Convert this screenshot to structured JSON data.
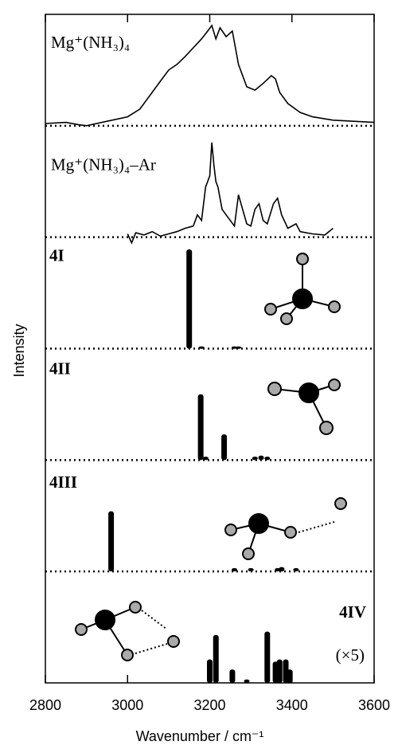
{
  "chart_data": {
    "type": "stacked",
    "xlabel": "Wavenumber / cm⁻¹",
    "ylabel": "Intensity",
    "xlim": [
      2800,
      3600
    ],
    "xticks": [
      2800,
      3000,
      3200,
      3400,
      3600
    ],
    "ylim": [
      0,
      100
    ],
    "panels": [
      {
        "type": "line",
        "label": "Mg⁺(NH₃)₄",
        "x": [
          2800,
          2850,
          2880,
          2900,
          2950,
          3000,
          3030,
          3060,
          3080,
          3100,
          3120,
          3140,
          3160,
          3180,
          3195,
          3205,
          3215,
          3225,
          3240,
          3255,
          3270,
          3290,
          3310,
          3330,
          3350,
          3360,
          3370,
          3390,
          3420,
          3450,
          3500,
          3550,
          3600
        ],
        "values": [
          2,
          3,
          1,
          0,
          4,
          8,
          15,
          30,
          40,
          50,
          55,
          62,
          70,
          78,
          85,
          90,
          78,
          88,
          80,
          85,
          55,
          35,
          32,
          38,
          45,
          42,
          30,
          20,
          12,
          8,
          5,
          4,
          3
        ]
      },
      {
        "type": "line",
        "label": "Mg⁺(NH₃)₄–Ar",
        "x": [
          3000,
          3010,
          3020,
          3040,
          3060,
          3080,
          3100,
          3120,
          3140,
          3160,
          3170,
          3180,
          3190,
          3200,
          3205,
          3210,
          3215,
          3220,
          3230,
          3240,
          3250,
          3260,
          3270,
          3280,
          3290,
          3300,
          3310,
          3320,
          3330,
          3340,
          3355,
          3365,
          3375,
          3390,
          3410,
          3420,
          3450,
          3480,
          3500
        ],
        "values": [
          3,
          -5,
          4,
          2,
          5,
          1,
          3,
          5,
          8,
          10,
          20,
          15,
          45,
          55,
          85,
          65,
          50,
          45,
          25,
          20,
          15,
          10,
          38,
          25,
          12,
          10,
          25,
          30,
          15,
          12,
          30,
          35,
          20,
          8,
          12,
          5,
          3,
          2,
          8
        ]
      },
      {
        "type": "stick",
        "label": "4I",
        "x": [
          3150,
          3180,
          3260,
          3270
        ],
        "values": [
          89,
          2,
          2,
          2
        ]
      },
      {
        "type": "stick",
        "label": "4II",
        "x": [
          3178,
          3190,
          3235,
          3310,
          3325,
          3340
        ],
        "values": [
          59,
          3,
          23,
          3,
          4,
          3
        ]
      },
      {
        "type": "stick",
        "label": "4III",
        "x": [
          2960,
          3260,
          3300,
          3365,
          3375,
          3410
        ],
        "values": [
          54,
          3,
          3,
          3,
          4,
          3
        ]
      },
      {
        "type": "stick",
        "label": "4IV",
        "annotation": "(×5)",
        "x": [
          3200,
          3215,
          3255,
          3290,
          3340,
          3360,
          3370,
          3385,
          3395
        ],
        "values": [
          21,
          43,
          12,
          3,
          46,
          19,
          21,
          21,
          12
        ]
      }
    ]
  }
}
